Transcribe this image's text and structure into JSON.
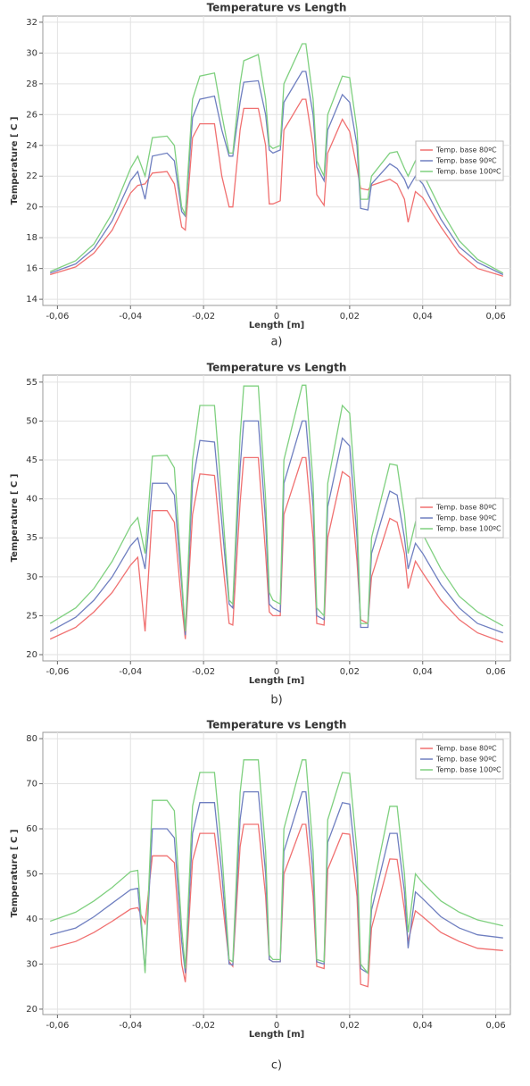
{
  "chart_data": [
    {
      "type": "line",
      "title": "Temperature vs Length",
      "x_label": "Length [m]",
      "y_label": "Temperature [ C ]",
      "caption": "a)",
      "xlim": [
        -0.064,
        0.064
      ],
      "ylim": [
        13.6,
        32.4
      ],
      "xticks": [
        {
          "value": -0.06,
          "label": "-0,06"
        },
        {
          "value": -0.04,
          "label": "-0,04"
        },
        {
          "value": -0.02,
          "label": "-0,02"
        },
        0,
        {
          "value": 0.02,
          "label": "0,02"
        },
        {
          "value": 0.04,
          "label": "0,04"
        },
        {
          "value": 0.06,
          "label": "0,06"
        }
      ],
      "yticks": [
        14,
        16,
        18,
        20,
        22,
        24,
        26,
        28,
        30,
        32
      ],
      "grid": true,
      "legend": "right",
      "x": [
        -0.062,
        -0.055,
        -0.05,
        -0.045,
        -0.04,
        -0.038,
        -0.036,
        -0.034,
        -0.03,
        -0.028,
        -0.026,
        -0.025,
        -0.023,
        -0.021,
        -0.017,
        -0.015,
        -0.013,
        -0.012,
        -0.01,
        -0.009,
        -0.005,
        -0.003,
        -0.002,
        -0.001,
        0.001,
        0.002,
        0.007,
        0.008,
        0.01,
        0.011,
        0.013,
        0.014,
        0.018,
        0.02,
        0.022,
        0.023,
        0.025,
        0.026,
        0.031,
        0.033,
        0.035,
        0.036,
        0.038,
        0.04,
        0.045,
        0.05,
        0.055,
        0.062
      ],
      "series": [
        {
          "name": "Temp. base 80ºC",
          "color": "#f07070",
          "values": [
            15.6,
            16.1,
            17,
            18.5,
            20.9,
            21.4,
            21.5,
            22.2,
            22.3,
            21.5,
            18.7,
            18.5,
            24.5,
            25.4,
            25.4,
            22,
            20,
            20,
            25,
            26.4,
            26.4,
            24,
            20.2,
            20.2,
            20.4,
            25,
            27,
            27,
            24,
            20.8,
            20.1,
            23.5,
            25.7,
            24.9,
            22.5,
            21.2,
            21.1,
            21.4,
            21.8,
            21.5,
            20.5,
            19,
            21,
            20.6,
            18.7,
            17,
            16,
            15.5
          ]
        },
        {
          "name": "Temp. base 90ºC",
          "color": "#6f7fc0",
          "values": [
            15.7,
            16.3,
            17.3,
            19.1,
            21.7,
            22.3,
            20.5,
            23.3,
            23.5,
            23,
            19.7,
            19.4,
            25.8,
            27,
            27.2,
            25,
            23.3,
            23.3,
            26.8,
            28.1,
            28.2,
            26,
            23.7,
            23.5,
            23.7,
            26.8,
            28.8,
            28.8,
            26,
            22.6,
            21.7,
            25,
            27.3,
            26.8,
            24,
            19.9,
            19.8,
            21.5,
            22.8,
            22.5,
            21.8,
            21.2,
            22,
            21.5,
            19.2,
            17.4,
            16.4,
            15.6
          ]
        },
        {
          "name": "Temp. base 100ºC",
          "color": "#7fd07f",
          "values": [
            15.8,
            16.5,
            17.6,
            19.6,
            22.5,
            23.3,
            22,
            24.5,
            24.6,
            24,
            20,
            19.5,
            27,
            28.5,
            28.7,
            26,
            23.5,
            23.5,
            28,
            29.5,
            29.9,
            27,
            24,
            23.8,
            24,
            28,
            30.6,
            30.6,
            27,
            23,
            22,
            26,
            28.5,
            28.4,
            25,
            20.5,
            20.5,
            22,
            23.5,
            23.6,
            22.5,
            22,
            23,
            22.2,
            19.8,
            17.8,
            16.6,
            15.7
          ]
        }
      ]
    },
    {
      "type": "line",
      "title": "Temperature vs Length",
      "x_label": "Length [m]",
      "y_label": "Temperature [ C ]",
      "caption": "b)",
      "xlim": [
        -0.064,
        0.064
      ],
      "ylim": [
        19.2,
        55.9
      ],
      "xticks": [
        {
          "value": -0.06,
          "label": "-0,06"
        },
        {
          "value": -0.04,
          "label": "-0,04"
        },
        {
          "value": -0.02,
          "label": "-0,02"
        },
        0,
        {
          "value": 0.02,
          "label": "0,02"
        },
        {
          "value": 0.04,
          "label": "0,04"
        },
        {
          "value": 0.06,
          "label": "0,06"
        }
      ],
      "yticks": [
        20,
        25,
        30,
        35,
        40,
        45,
        50,
        55
      ],
      "grid": true,
      "legend": "right",
      "x": [
        -0.062,
        -0.055,
        -0.05,
        -0.045,
        -0.04,
        -0.038,
        -0.036,
        -0.034,
        -0.03,
        -0.028,
        -0.026,
        -0.025,
        -0.023,
        -0.021,
        -0.017,
        -0.015,
        -0.013,
        -0.012,
        -0.01,
        -0.009,
        -0.005,
        -0.003,
        -0.002,
        -0.001,
        0.001,
        0.002,
        0.007,
        0.008,
        0.01,
        0.011,
        0.013,
        0.014,
        0.018,
        0.02,
        0.022,
        0.023,
        0.025,
        0.026,
        0.031,
        0.033,
        0.035,
        0.036,
        0.038,
        0.04,
        0.045,
        0.05,
        0.055,
        0.062
      ],
      "series": [
        {
          "name": "Temp. base 80ºC",
          "color": "#f07070",
          "values": [
            22,
            23.5,
            25.5,
            28,
            31.5,
            32.5,
            23,
            38.5,
            38.5,
            37,
            26.5,
            22,
            38,
            43.2,
            43,
            33,
            24,
            23.8,
            39.5,
            45.3,
            45.3,
            33,
            25.5,
            25,
            25,
            38,
            45.3,
            45.3,
            35,
            24,
            23.8,
            35,
            43.5,
            42.8,
            32,
            24.5,
            24,
            30,
            37.5,
            37,
            33,
            28.5,
            32,
            30.5,
            27,
            24.5,
            22.8,
            21.6
          ]
        },
        {
          "name": "Temp. base 90ºC",
          "color": "#6f7fc0",
          "values": [
            23,
            24.8,
            27,
            30,
            34,
            35,
            31,
            42,
            42,
            40.5,
            29,
            22.5,
            42,
            47.5,
            47.3,
            37,
            26.5,
            26,
            44,
            50,
            50,
            37,
            26.5,
            26,
            25.5,
            42,
            50,
            50,
            39,
            25,
            24.5,
            39,
            47.8,
            46.8,
            35,
            23.5,
            23.5,
            33,
            41,
            40.5,
            35,
            31,
            34.3,
            33,
            29,
            26,
            24,
            22.8
          ]
        },
        {
          "name": "Temp. base 100ºC",
          "color": "#7fd07f",
          "values": [
            24,
            26,
            28.5,
            32,
            36.5,
            37.6,
            33,
            45.5,
            45.6,
            44,
            30,
            23,
            45,
            52,
            52,
            40,
            27,
            26.5,
            48,
            54.5,
            54.5,
            40,
            28,
            27,
            26.5,
            45,
            54.6,
            54.6,
            42,
            26,
            25,
            42,
            52,
            51,
            38,
            24,
            24,
            35,
            44.5,
            44.3,
            38,
            33,
            37,
            35.5,
            31,
            27.5,
            25.5,
            23.7
          ]
        }
      ]
    },
    {
      "type": "line",
      "title": "Temperature vs Length",
      "x_label": "Length [m]",
      "y_label": "Temperature [ C ]",
      "caption": "c)",
      "xlim": [
        -0.064,
        0.064
      ],
      "ylim": [
        18.8,
        81.4
      ],
      "xticks": [
        {
          "value": -0.06,
          "label": "-0,06"
        },
        {
          "value": -0.04,
          "label": "-0,04"
        },
        {
          "value": -0.02,
          "label": "-0,02"
        },
        0,
        {
          "value": 0.02,
          "label": "0,02"
        },
        {
          "value": 0.04,
          "label": "0,04"
        },
        {
          "value": 0.06,
          "label": "0,06"
        }
      ],
      "yticks": [
        20,
        30,
        40,
        50,
        60,
        70,
        80
      ],
      "grid": true,
      "legend": "upper right",
      "x": [
        -0.062,
        -0.055,
        -0.05,
        -0.045,
        -0.04,
        -0.038,
        -0.036,
        -0.034,
        -0.03,
        -0.028,
        -0.026,
        -0.025,
        -0.023,
        -0.021,
        -0.017,
        -0.015,
        -0.013,
        -0.012,
        -0.01,
        -0.009,
        -0.005,
        -0.003,
        -0.002,
        -0.001,
        0.001,
        0.002,
        0.007,
        0.008,
        0.01,
        0.011,
        0.013,
        0.014,
        0.018,
        0.02,
        0.022,
        0.023,
        0.025,
        0.026,
        0.031,
        0.033,
        0.035,
        0.036,
        0.038,
        0.04,
        0.045,
        0.05,
        0.055,
        0.062
      ],
      "series": [
        {
          "name": "Temp. base 80ºC",
          "color": "#f07070",
          "values": [
            33.5,
            35,
            37,
            39.5,
            42.2,
            42.5,
            39,
            54,
            54,
            52.5,
            30,
            26,
            53,
            59,
            59,
            45,
            30.5,
            29.5,
            56,
            61,
            61,
            45,
            31,
            30.5,
            30.5,
            50,
            61,
            61,
            45,
            29.5,
            29,
            51,
            59,
            58.8,
            45,
            25.5,
            25,
            38,
            53.3,
            53.2,
            42,
            35,
            41.8,
            40.5,
            37,
            35,
            33.5,
            33
          ]
        },
        {
          "name": "Temp. base 90ºC",
          "color": "#6f7fc0",
          "values": [
            36.5,
            38,
            40.5,
            43.5,
            46.5,
            46.8,
            28.5,
            60,
            60,
            58,
            35,
            28,
            59,
            65.8,
            65.8,
            50,
            30,
            29.8,
            62,
            68.2,
            68.2,
            50,
            31,
            30.5,
            30.5,
            55,
            68.2,
            68.2,
            50,
            30.5,
            30,
            57,
            65.8,
            65.5,
            50,
            29,
            28,
            42,
            59,
            59,
            46,
            33.5,
            46,
            44.5,
            40.5,
            38,
            36.5,
            35.8
          ]
        },
        {
          "name": "Temp. base 100ºC",
          "color": "#7fd07f",
          "values": [
            39.5,
            41.5,
            44,
            47,
            50.5,
            50.8,
            28,
            66.3,
            66.3,
            64,
            38,
            29,
            65,
            72.5,
            72.5,
            55,
            31,
            30.5,
            68,
            75.3,
            75.3,
            55,
            32,
            31,
            31,
            60,
            75.3,
            75.3,
            55,
            31,
            30.5,
            62,
            72.5,
            72.3,
            55,
            30,
            28,
            45,
            65,
            65,
            50,
            37,
            50,
            48,
            44,
            41.5,
            39.8,
            38.5
          ]
        }
      ]
    }
  ]
}
